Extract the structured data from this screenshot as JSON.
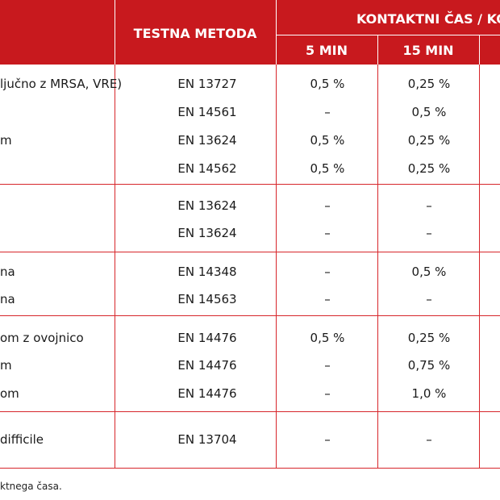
{
  "header": {
    "method_label": "TESTNA METODA",
    "contact_label": "KONTAKTNI ČAS / KO",
    "min5_label": "5 MIN",
    "min15_label": "15 MIN"
  },
  "rows": [
    {
      "org": "ljučno z MRSA, VRE)",
      "method": "EN 13727",
      "m5": "0,5 %",
      "m15": "0,25 %"
    },
    {
      "org": "",
      "method": "EN 14561",
      "m5": "–",
      "m15": "0,5 %"
    },
    {
      "org": "m",
      "method": "EN 13624",
      "m5": "0,5 %",
      "m15": "0,25 %"
    },
    {
      "org": "",
      "method": "EN 14562",
      "m5": "0,5 %",
      "m15": "0,25 %"
    },
    {
      "org": "",
      "method": "EN 13624",
      "m5": "–",
      "m15": "–"
    },
    {
      "org": "",
      "method": "EN 13624",
      "m5": "–",
      "m15": "–"
    },
    {
      "org": "na",
      "method": "EN 14348",
      "m5": "–",
      "m15": "0,5 %"
    },
    {
      "org": "na",
      "method": "EN 14563",
      "m5": "–",
      "m15": "–"
    },
    {
      "org": "om z ovojnico",
      "method": "EN 14476",
      "m5": "0,5 %",
      "m15": "0,25 %"
    },
    {
      "org": "m",
      "method": "EN 14476",
      "m5": "–",
      "m15": "0,75 %"
    },
    {
      "org": "om",
      "method": "EN 14476",
      "m5": "–",
      "m15": "1,0 %"
    },
    {
      "org": "difficile",
      "method": "EN 13704",
      "m5": "–",
      "m15": "–"
    }
  ],
  "footnote": "ktnega časa.",
  "colors": {
    "header_bg": "#c8191e",
    "grid": "#d7262b"
  }
}
